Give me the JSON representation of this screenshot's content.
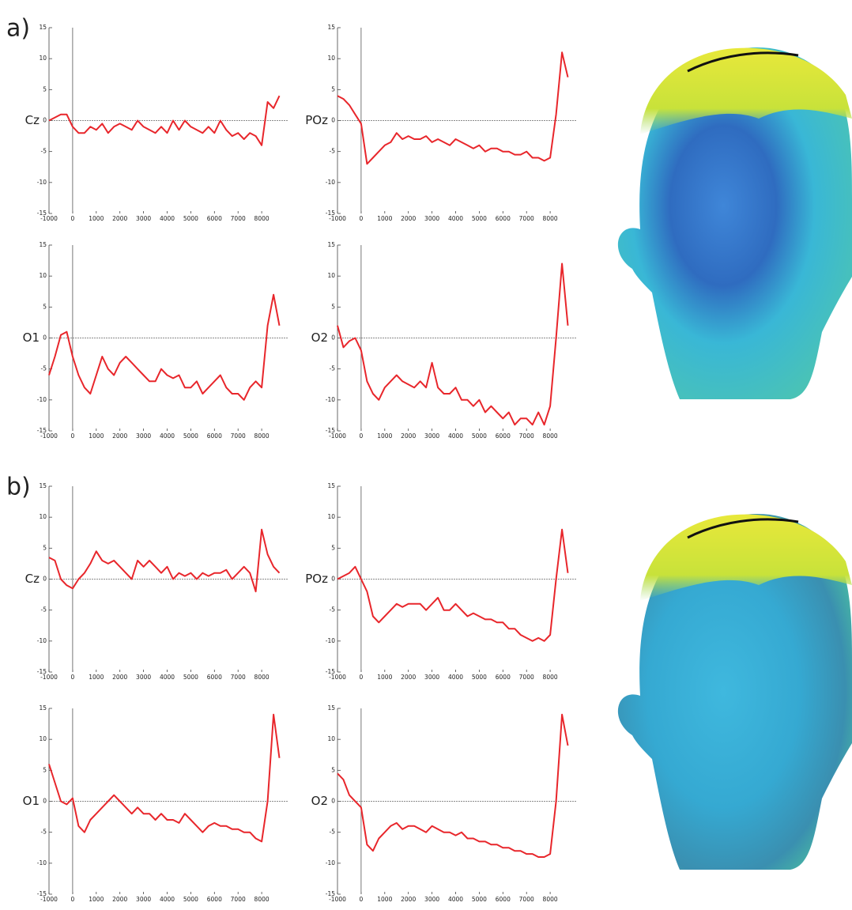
{
  "chart_data": [
    {
      "type": "line",
      "panel_label": "a)",
      "ylabel": "Cz",
      "color": "#e8262b",
      "x": [
        -1000,
        -750,
        -500,
        -250,
        0,
        250,
        500,
        750,
        1000,
        1250,
        1500,
        1750,
        2000,
        2250,
        2500,
        2750,
        3000,
        3250,
        3500,
        3750,
        4000,
        4250,
        4500,
        4750,
        5000,
        5250,
        5500,
        5750,
        6000,
        6250,
        6500,
        6750,
        7000,
        7250,
        7500,
        7750,
        8000,
        8250,
        8500,
        8750
      ],
      "values": [
        0,
        0.5,
        1,
        1,
        -1,
        -2,
        -2,
        -1,
        -1.5,
        -0.5,
        -2,
        -1,
        -0.5,
        -1,
        -1.5,
        0,
        -1,
        -1.5,
        -2,
        -1,
        -2,
        0,
        -1.5,
        0,
        -1,
        -1.5,
        -2,
        -1,
        -2,
        0,
        -1.5,
        -2.5,
        -2,
        -3,
        -2,
        -2.5,
        -4,
        3,
        2,
        4
      ],
      "xlim": [
        -1000,
        9100
      ],
      "ylim": [
        -15,
        15
      ],
      "xticks": [
        -1000,
        0,
        1000,
        2000,
        3000,
        4000,
        5000,
        6000,
        7000,
        8000
      ],
      "yticks": [
        -15,
        -10,
        -5,
        0,
        5,
        10,
        15
      ]
    },
    {
      "type": "line",
      "ylabel": "POz",
      "color": "#e8262b",
      "x": [
        -1000,
        -750,
        -500,
        -250,
        0,
        250,
        500,
        750,
        1000,
        1250,
        1500,
        1750,
        2000,
        2250,
        2500,
        2750,
        3000,
        3250,
        3500,
        3750,
        4000,
        4250,
        4500,
        4750,
        5000,
        5250,
        5500,
        5750,
        6000,
        6250,
        6500,
        6750,
        7000,
        7250,
        7500,
        7750,
        8000,
        8250,
        8500,
        8750
      ],
      "values": [
        4,
        3.5,
        2.5,
        1,
        -0.5,
        -7,
        -6,
        -5,
        -4,
        -3.5,
        -2,
        -3,
        -2.5,
        -3,
        -3,
        -2.5,
        -3.5,
        -3,
        -3.5,
        -4,
        -3,
        -3.5,
        -4,
        -4.5,
        -4,
        -5,
        -4.5,
        -4.5,
        -5,
        -5,
        -5.5,
        -5.5,
        -5,
        -6,
        -6,
        -6.5,
        -6,
        1,
        11,
        7
      ],
      "xlim": [
        -1000,
        9100
      ],
      "ylim": [
        -15,
        15
      ],
      "xticks": [
        -1000,
        0,
        1000,
        2000,
        3000,
        4000,
        5000,
        6000,
        7000,
        8000
      ],
      "yticks": [
        -15,
        -10,
        -5,
        0,
        5,
        10,
        15
      ]
    },
    {
      "type": "line",
      "ylabel": "O1",
      "color": "#e8262b",
      "x": [
        -1000,
        -750,
        -500,
        -250,
        0,
        250,
        500,
        750,
        1000,
        1250,
        1500,
        1750,
        2000,
        2250,
        2500,
        2750,
        3000,
        3250,
        3500,
        3750,
        4000,
        4250,
        4500,
        4750,
        5000,
        5250,
        5500,
        5750,
        6000,
        6250,
        6500,
        6750,
        7000,
        7250,
        7500,
        7750,
        8000,
        8250,
        8500,
        8750
      ],
      "values": [
        -6,
        -3,
        0.5,
        1,
        -3,
        -6,
        -8,
        -9,
        -6,
        -3,
        -5,
        -6,
        -4,
        -3,
        -4,
        -5,
        -6,
        -7,
        -7,
        -5,
        -6,
        -6.5,
        -6,
        -8,
        -8,
        -7,
        -9,
        -8,
        -7,
        -6,
        -8,
        -9,
        -9,
        -10,
        -8,
        -7,
        -8,
        2,
        7,
        2
      ],
      "xlim": [
        -1000,
        9100
      ],
      "ylim": [
        -15,
        15
      ],
      "xticks": [
        -1000,
        0,
        1000,
        2000,
        3000,
        4000,
        5000,
        6000,
        7000,
        8000
      ],
      "yticks": [
        -15,
        -10,
        -5,
        0,
        5,
        10,
        15
      ]
    },
    {
      "type": "line",
      "ylabel": "O2",
      "color": "#e8262b",
      "x": [
        -1000,
        -750,
        -500,
        -250,
        0,
        250,
        500,
        750,
        1000,
        1250,
        1500,
        1750,
        2000,
        2250,
        2500,
        2750,
        3000,
        3250,
        3500,
        3750,
        4000,
        4250,
        4500,
        4750,
        5000,
        5250,
        5500,
        5750,
        6000,
        6250,
        6500,
        6750,
        7000,
        7250,
        7500,
        7750,
        8000,
        8250,
        8500,
        8750
      ],
      "values": [
        2,
        -1.5,
        -0.5,
        0,
        -2,
        -7,
        -9,
        -10,
        -8,
        -7,
        -6,
        -7,
        -7.5,
        -8,
        -7,
        -8,
        -4,
        -8,
        -9,
        -9,
        -8,
        -10,
        -10,
        -11,
        -10,
        -12,
        -11,
        -12,
        -13,
        -12,
        -14,
        -13,
        -13,
        -14,
        -12,
        -14,
        -11,
        0,
        12,
        2
      ],
      "xlim": [
        -1000,
        9100
      ],
      "ylim": [
        -15,
        15
      ],
      "xticks": [
        -1000,
        0,
        1000,
        2000,
        3000,
        4000,
        5000,
        6000,
        7000,
        8000
      ],
      "yticks": [
        -15,
        -10,
        -5,
        0,
        5,
        10,
        15
      ]
    },
    {
      "type": "line",
      "panel_label": "b)",
      "ylabel": "Cz",
      "color": "#e8262b",
      "x": [
        -1000,
        -750,
        -500,
        -250,
        0,
        250,
        500,
        750,
        1000,
        1250,
        1500,
        1750,
        2000,
        2250,
        2500,
        2750,
        3000,
        3250,
        3500,
        3750,
        4000,
        4250,
        4500,
        4750,
        5000,
        5250,
        5500,
        5750,
        6000,
        6250,
        6500,
        6750,
        7000,
        7250,
        7500,
        7750,
        8000,
        8250,
        8500,
        8750
      ],
      "values": [
        3.5,
        3,
        0,
        -1,
        -1.5,
        0,
        1,
        2.5,
        4.5,
        3,
        2.5,
        3,
        2,
        1,
        0,
        3,
        2,
        3,
        2,
        1,
        2,
        0,
        1,
        0.5,
        1,
        0,
        1,
        0.5,
        1,
        1,
        1.5,
        0,
        1,
        2,
        1,
        -2,
        8,
        4,
        2,
        1
      ],
      "xlim": [
        -1000,
        9100
      ],
      "ylim": [
        -15,
        15
      ],
      "xticks": [
        -1000,
        0,
        1000,
        2000,
        3000,
        4000,
        5000,
        6000,
        7000,
        8000
      ],
      "yticks": [
        -15,
        -10,
        -5,
        0,
        5,
        10,
        15
      ]
    },
    {
      "type": "line",
      "ylabel": "POz",
      "color": "#e8262b",
      "x": [
        -1000,
        -750,
        -500,
        -250,
        0,
        250,
        500,
        750,
        1000,
        1250,
        1500,
        1750,
        2000,
        2250,
        2500,
        2750,
        3000,
        3250,
        3500,
        3750,
        4000,
        4250,
        4500,
        4750,
        5000,
        5250,
        5500,
        5750,
        6000,
        6250,
        6500,
        6750,
        7000,
        7250,
        7500,
        7750,
        8000,
        8250,
        8500,
        8750
      ],
      "values": [
        0,
        0.5,
        1,
        2,
        0,
        -2,
        -6,
        -7,
        -6,
        -5,
        -4,
        -4.5,
        -4,
        -4,
        -4,
        -5,
        -4,
        -3,
        -5,
        -5,
        -4,
        -5,
        -6,
        -5.5,
        -6,
        -6.5,
        -6.5,
        -7,
        -7,
        -8,
        -8,
        -9,
        -9.5,
        -10,
        -9.5,
        -10,
        -9,
        0,
        8,
        1
      ],
      "xlim": [
        -1000,
        9100
      ],
      "ylim": [
        -15,
        15
      ],
      "xticks": [
        -1000,
        0,
        1000,
        2000,
        3000,
        4000,
        5000,
        6000,
        7000,
        8000
      ],
      "yticks": [
        -15,
        -10,
        -5,
        0,
        5,
        10,
        15
      ]
    },
    {
      "type": "line",
      "ylabel": "O1",
      "color": "#e8262b",
      "x": [
        -1000,
        -750,
        -500,
        -250,
        0,
        250,
        500,
        750,
        1000,
        1250,
        1500,
        1750,
        2000,
        2250,
        2500,
        2750,
        3000,
        3250,
        3500,
        3750,
        4000,
        4250,
        4500,
        4750,
        5000,
        5250,
        5500,
        5750,
        6000,
        6250,
        6500,
        6750,
        7000,
        7250,
        7500,
        7750,
        8000,
        8250,
        8500,
        8750
      ],
      "values": [
        6,
        3,
        0,
        -0.5,
        0.5,
        -4,
        -5,
        -3,
        -2,
        -1,
        0,
        1,
        0,
        -1,
        -2,
        -1,
        -2,
        -2,
        -3,
        -2,
        -3,
        -3,
        -3.5,
        -2,
        -3,
        -4,
        -5,
        -4,
        -3.5,
        -4,
        -4,
        -4.5,
        -4.5,
        -5,
        -5,
        -6,
        -6.5,
        0,
        14,
        7
      ],
      "xlim": [
        -1000,
        9100
      ],
      "ylim": [
        -15,
        15
      ],
      "xticks": [
        -1000,
        0,
        1000,
        2000,
        3000,
        4000,
        5000,
        6000,
        7000,
        8000
      ],
      "yticks": [
        -15,
        -10,
        -5,
        0,
        5,
        10,
        15
      ]
    },
    {
      "type": "line",
      "ylabel": "O2",
      "color": "#e8262b",
      "x": [
        -1000,
        -750,
        -500,
        -250,
        0,
        250,
        500,
        750,
        1000,
        1250,
        1500,
        1750,
        2000,
        2250,
        2500,
        2750,
        3000,
        3250,
        3500,
        3750,
        4000,
        4250,
        4500,
        4750,
        5000,
        5250,
        5500,
        5750,
        6000,
        6250,
        6500,
        6750,
        7000,
        7250,
        7500,
        7750,
        8000,
        8250,
        8500,
        8750
      ],
      "values": [
        4.5,
        3.5,
        1,
        0,
        -1,
        -7,
        -8,
        -6,
        -5,
        -4,
        -3.5,
        -4.5,
        -4,
        -4,
        -4.5,
        -5,
        -4,
        -4.5,
        -5,
        -5,
        -5.5,
        -5,
        -6,
        -6,
        -6.5,
        -6.5,
        -7,
        -7,
        -7.5,
        -7.5,
        -8,
        -8,
        -8.5,
        -8.5,
        -9,
        -9,
        -8.5,
        0,
        14,
        9
      ],
      "xlim": [
        -1000,
        9100
      ],
      "ylim": [
        -15,
        15
      ],
      "xticks": [
        -1000,
        0,
        1000,
        2000,
        3000,
        4000,
        5000,
        6000,
        7000,
        8000
      ],
      "yticks": [
        -15,
        -10,
        -5,
        0,
        5,
        10,
        15
      ]
    }
  ]
}
